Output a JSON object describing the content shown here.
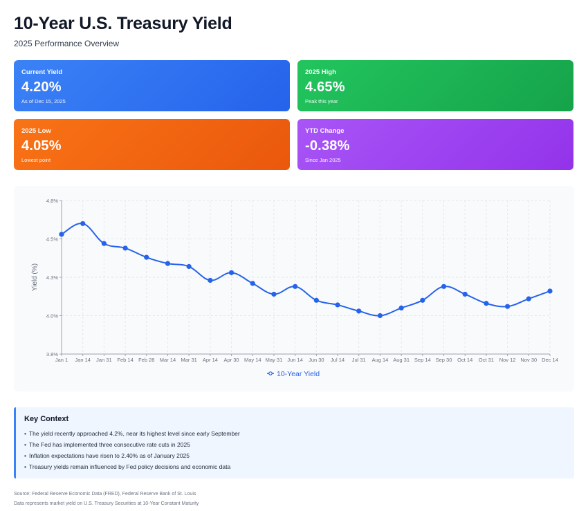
{
  "header": {
    "title": "10-Year U.S. Treasury Yield",
    "subtitle": "2025 Performance Overview"
  },
  "cards": [
    {
      "label": "Current Yield",
      "value": "4.20%",
      "note": "As of Dec 15, 2025",
      "color": "#2563eb"
    },
    {
      "label": "2025 High",
      "value": "4.65%",
      "note": "Peak this year",
      "color": "#16a34a"
    },
    {
      "label": "2025 Low",
      "value": "4.05%",
      "note": "Lowest point",
      "color": "#ea580c"
    },
    {
      "label": "YTD Change",
      "value": "-0.38%",
      "note": "Since Jan 2025",
      "color": "#9333ea"
    }
  ],
  "chart_data": {
    "type": "line",
    "title": "",
    "xlabel": "",
    "ylabel": "Yield (%)",
    "categories": [
      "Jan 1",
      "Jan 14",
      "Jan 31",
      "Feb 14",
      "Feb 28",
      "Mar 14",
      "Mar 31",
      "Apr 14",
      "Apr 30",
      "May 14",
      "May 31",
      "Jun 14",
      "Jun 30",
      "Jul 14",
      "Jul 31",
      "Aug 14",
      "Aug 31",
      "Sep 14",
      "Sep 30",
      "Oct 14",
      "Oct 31",
      "Nov 12",
      "Nov 30",
      "Dec 14"
    ],
    "series": [
      {
        "name": "10-Year Yield",
        "color": "#2563eb",
        "values": [
          4.58,
          4.65,
          4.52,
          4.49,
          4.43,
          4.39,
          4.37,
          4.28,
          4.33,
          4.26,
          4.19,
          4.24,
          4.15,
          4.12,
          4.08,
          4.05,
          4.1,
          4.15,
          4.24,
          4.19,
          4.13,
          4.11,
          4.16,
          4.21
        ]
      }
    ],
    "ylim": [
      3.8,
      4.8
    ],
    "yticks": [
      3.8,
      4.05,
      4.3,
      4.55,
      4.8
    ],
    "ytick_labels": [
      "3.8%",
      "4.0%",
      "4.3%",
      "4.5%",
      "4.8%"
    ],
    "grid": true,
    "legend": "bottom-center"
  },
  "context": {
    "title": "Key Context",
    "items": [
      "The yield recently approached 4.2%, near its highest level since early September",
      "The Fed has implemented three consecutive rate cuts in 2025",
      "Inflation expectations have risen to 2.40% as of January 2025",
      "Treasury yields remain influenced by Fed policy decisions and economic data"
    ]
  },
  "footer": {
    "source": "Source: Federal Reserve Economic Data (FRED), Federal Reserve Bank of St. Louis",
    "note": "Data represents market yield on U.S. Treasury Securities at 10-Year Constant Maturity"
  }
}
